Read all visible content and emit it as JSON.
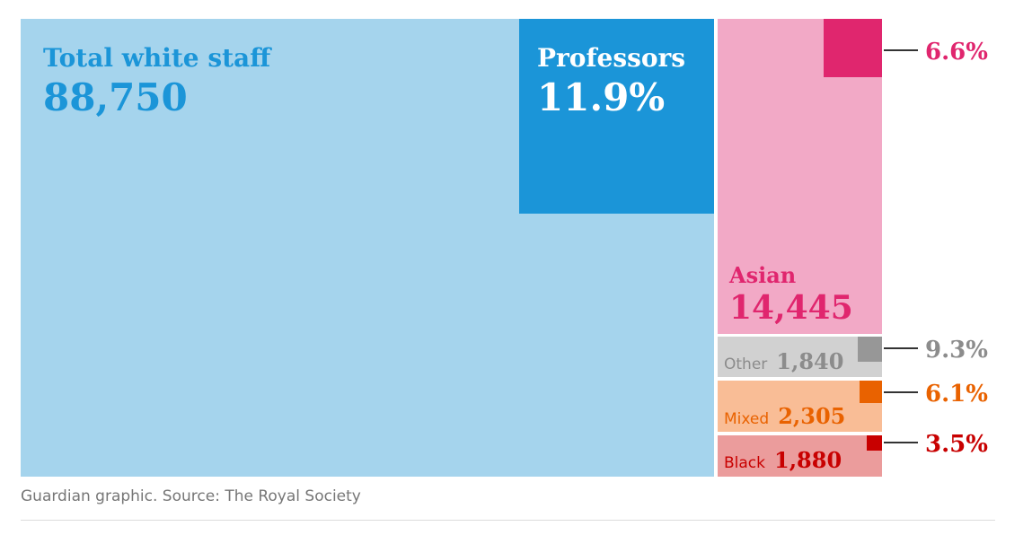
{
  "chart_data": {
    "type": "treemap",
    "source": "Guardian graphic. Source: The Royal Society",
    "groups": [
      {
        "id": "white",
        "label": "Total white staff",
        "value_label": "88,750",
        "value": 88750,
        "professor_share_label": "11.9%",
        "professor_share": 11.9,
        "professor_label": "Professors",
        "color": "#a5d4ed",
        "professor_color": "#1b95d8",
        "text_color": "#1b95d8",
        "professor_text_color": "#ffffff"
      },
      {
        "id": "asian",
        "label": "Asian",
        "value_label": "14,445",
        "value": 14445,
        "professor_share_label": "6.6%",
        "professor_share": 6.6,
        "color": "#f2a9c6",
        "professor_color": "#e0266e",
        "text_color": "#e0266e"
      },
      {
        "id": "other",
        "label": "Other",
        "value_label": "1,840",
        "value": 1840,
        "professor_share_label": "9.3%",
        "professor_share": 9.3,
        "color": "#d1d1d1",
        "professor_color": "#979797",
        "text_color": "#8c8c8c"
      },
      {
        "id": "mixed",
        "label": "Mixed",
        "value_label": "2,305",
        "value": 2305,
        "professor_share_label": "6.1%",
        "professor_share": 6.1,
        "color": "#f9bd96",
        "professor_color": "#e96200",
        "text_color": "#e96200"
      },
      {
        "id": "black",
        "label": "Black",
        "value_label": "1,880",
        "value": 1880,
        "professor_share_label": "3.5%",
        "professor_share": 3.5,
        "color": "#eb9c9c",
        "professor_color": "#c80000",
        "text_color": "#c80000"
      }
    ]
  }
}
